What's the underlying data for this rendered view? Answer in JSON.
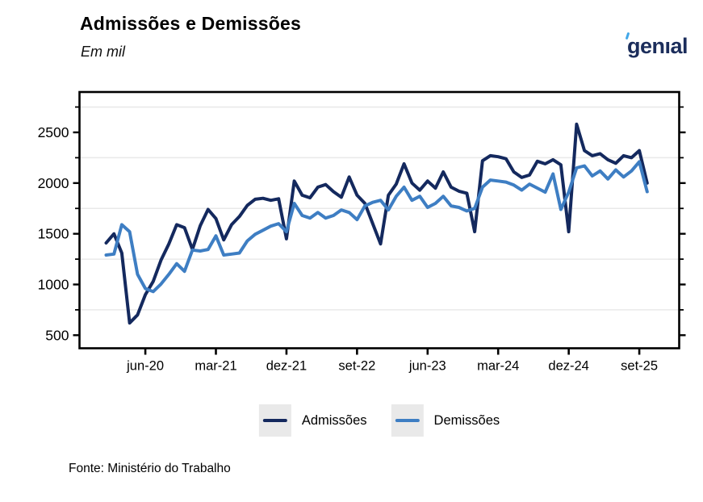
{
  "header": {
    "title": "Admissões e Demissões",
    "subtitle": "Em mil",
    "logo_text": "genıal"
  },
  "legend": {
    "items": [
      {
        "label": "Admissões",
        "color": "#14295e"
      },
      {
        "label": "Demissões",
        "color": "#3e7ec3"
      }
    ]
  },
  "footer": {
    "source": "Fonte: Ministério do Trabalho"
  },
  "colors": {
    "admissoes": "#14295e",
    "demissoes": "#3e7ec3",
    "grid": "#e9e9e9",
    "axis": "#000000",
    "logo_navy": "#1b2d5b",
    "logo_accent": "#41a7e8"
  },
  "chart_data": {
    "type": "line",
    "title": "Admissões e Demissões",
    "subtitle": "Em mil",
    "unit": "mil",
    "grid": "on",
    "legend_position": "bottom",
    "ylim": [
      370,
      2890
    ],
    "y_ticks_labeled": [
      500,
      1000,
      1500,
      2000,
      2500
    ],
    "y_ticks_minor": [
      750,
      1250,
      1750,
      2250,
      2750
    ],
    "gridline_values": [
      750,
      1250,
      1750,
      2250,
      2750
    ],
    "x_tick_indices": [
      5,
      14,
      23,
      32,
      41,
      50,
      59,
      68
    ],
    "x_tick_labels": [
      "jun-20",
      "mar-21",
      "dez-21",
      "set-22",
      "jun-23",
      "mar-24",
      "dez-24",
      "set-25"
    ],
    "x": [
      "jan-20",
      "fev-20",
      "mar-20",
      "abr-20",
      "mai-20",
      "jun-20",
      "jul-20",
      "ago-20",
      "set-20",
      "out-20",
      "nov-20",
      "dez-20",
      "jan-21",
      "fev-21",
      "mar-21",
      "abr-21",
      "mai-21",
      "jun-21",
      "jul-21",
      "ago-21",
      "set-21",
      "out-21",
      "nov-21",
      "dez-21",
      "jan-22",
      "fev-22",
      "mar-22",
      "abr-22",
      "mai-22",
      "jun-22",
      "jul-22",
      "ago-22",
      "set-22",
      "out-22",
      "nov-22",
      "dez-22",
      "jan-23",
      "fev-23",
      "mar-23",
      "abr-23",
      "mai-23",
      "jun-23",
      "jul-23",
      "ago-23",
      "set-23",
      "out-23",
      "nov-23",
      "dez-23",
      "jan-24",
      "fev-24",
      "mar-24",
      "abr-24",
      "mai-24",
      "jun-24",
      "jul-24",
      "ago-24",
      "set-24",
      "out-24",
      "nov-24",
      "dez-24",
      "jan-25",
      "fev-25",
      "mar-25",
      "abr-25",
      "mai-25",
      "jun-25",
      "jul-25",
      "ago-25",
      "set-25",
      "out-25"
    ],
    "series": [
      {
        "name": "Admissões",
        "color": "#14295e",
        "values": [
          1410,
          1500,
          1310,
          620,
          700,
          900,
          1030,
          1240,
          1400,
          1590,
          1560,
          1345,
          1580,
          1740,
          1650,
          1440,
          1590,
          1670,
          1780,
          1840,
          1850,
          1830,
          1845,
          1450,
          2020,
          1880,
          1855,
          1960,
          1985,
          1915,
          1860,
          2060,
          1880,
          1800,
          1600,
          1400,
          1880,
          1990,
          2190,
          2000,
          1930,
          2020,
          1950,
          2110,
          1960,
          1920,
          1900,
          1520,
          2220,
          2270,
          2260,
          2240,
          2110,
          2055,
          2080,
          2215,
          2190,
          2230,
          2180,
          1520,
          2580,
          2320,
          2270,
          2290,
          2230,
          2195,
          2270,
          2250,
          2320,
          2000
        ]
      },
      {
        "name": "Demissões",
        "color": "#3e7ec3",
        "values": [
          1290,
          1300,
          1590,
          1520,
          1100,
          960,
          930,
          1005,
          1100,
          1205,
          1130,
          1340,
          1330,
          1345,
          1480,
          1290,
          1300,
          1310,
          1430,
          1495,
          1535,
          1575,
          1600,
          1520,
          1800,
          1680,
          1655,
          1710,
          1655,
          1680,
          1735,
          1710,
          1640,
          1775,
          1810,
          1830,
          1735,
          1870,
          1960,
          1830,
          1870,
          1760,
          1800,
          1870,
          1775,
          1760,
          1725,
          1750,
          1960,
          2030,
          2020,
          2010,
          1980,
          1930,
          1990,
          1950,
          1910,
          2090,
          1740,
          1910,
          2150,
          2170,
          2070,
          2120,
          2040,
          2130,
          2060,
          2120,
          2210,
          1915
        ]
      }
    ],
    "source": "Fonte: Ministério do Trabalho"
  }
}
